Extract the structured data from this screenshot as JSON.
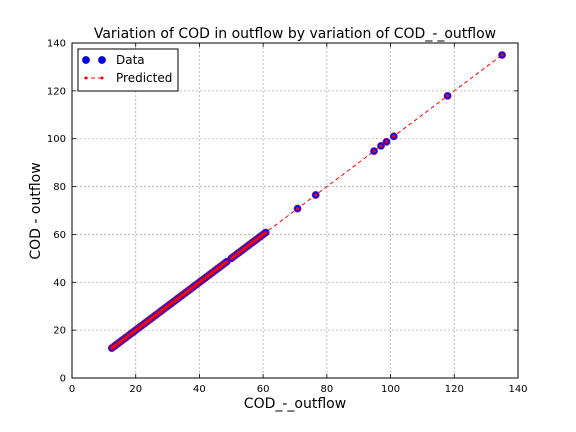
{
  "chart_data": {
    "type": "scatter",
    "title": "Variation of COD in outflow by variation of COD_-_outflow",
    "xlabel": "COD_-_outflow",
    "ylabel": "COD - outflow",
    "xlim": [
      0,
      140
    ],
    "ylim": [
      0,
      140
    ],
    "xticks": [
      "0",
      "20",
      "40",
      "60",
      "80",
      "100",
      "120",
      "140"
    ],
    "yticks": [
      "0",
      "20",
      "40",
      "60",
      "80",
      "100",
      "120",
      "140"
    ],
    "grid": true,
    "legend_position": "top-left",
    "series": [
      {
        "name": "Data",
        "kind": "scatter",
        "color": "#0000ff",
        "edge_color": "#7a1a7a",
        "x": [
          12.5,
          13.0,
          13.5,
          14.0,
          14.6,
          15.2,
          15.8,
          16.3,
          16.9,
          17.5,
          18.0,
          18.6,
          19.2,
          19.7,
          20.3,
          20.9,
          21.4,
          22.0,
          22.6,
          23.1,
          23.7,
          24.3,
          24.8,
          25.4,
          26.0,
          26.5,
          27.1,
          27.7,
          28.2,
          28.8,
          29.4,
          29.9,
          30.5,
          31.1,
          31.6,
          32.2,
          32.8,
          33.3,
          33.9,
          34.5,
          35.0,
          35.6,
          36.2,
          36.7,
          37.3,
          37.9,
          38.4,
          39.0,
          39.6,
          40.1,
          40.7,
          41.3,
          41.8,
          42.4,
          43.0,
          43.5,
          44.1,
          44.7,
          45.2,
          45.8,
          46.4,
          46.9,
          47.5,
          48.1,
          48.6,
          50.0,
          50.6,
          51.2,
          51.8,
          52.4,
          53.0,
          53.6,
          54.2,
          54.8,
          55.4,
          56.0,
          56.6,
          57.2,
          57.8,
          58.4,
          59.0,
          59.6,
          60.2,
          60.8,
          70.8,
          76.5,
          94.8,
          97.0,
          98.7,
          101.0,
          117.9,
          135.0
        ],
        "y": [
          12.5,
          13.0,
          13.5,
          14.0,
          14.6,
          15.2,
          15.8,
          16.3,
          16.9,
          17.5,
          18.0,
          18.6,
          19.2,
          19.7,
          20.3,
          20.9,
          21.4,
          22.0,
          22.6,
          23.1,
          23.7,
          24.3,
          24.8,
          25.4,
          26.0,
          26.5,
          27.1,
          27.7,
          28.2,
          28.8,
          29.4,
          29.9,
          30.5,
          31.1,
          31.6,
          32.2,
          32.8,
          33.3,
          33.9,
          34.5,
          35.0,
          35.6,
          36.2,
          36.7,
          37.3,
          37.9,
          38.4,
          39.0,
          39.6,
          40.1,
          40.7,
          41.3,
          41.8,
          42.4,
          43.0,
          43.5,
          44.1,
          44.7,
          45.2,
          45.8,
          46.4,
          46.9,
          47.5,
          48.1,
          48.6,
          50.0,
          50.6,
          51.2,
          51.8,
          52.4,
          53.0,
          53.6,
          54.2,
          54.8,
          55.4,
          56.0,
          56.6,
          57.2,
          57.8,
          58.4,
          59.0,
          59.6,
          60.2,
          60.8,
          70.8,
          76.5,
          94.8,
          97.0,
          98.7,
          101.0,
          117.9,
          135.0
        ]
      },
      {
        "name": "Predicted",
        "kind": "dashed-line",
        "color": "#ff0000",
        "x": [
          12.5,
          13.0,
          13.5,
          14.0,
          14.6,
          15.2,
          15.8,
          16.3,
          16.9,
          17.5,
          18.0,
          18.6,
          19.2,
          19.7,
          20.3,
          20.9,
          21.4,
          22.0,
          22.6,
          23.1,
          23.7,
          24.3,
          24.8,
          25.4,
          26.0,
          26.5,
          27.1,
          27.7,
          28.2,
          28.8,
          29.4,
          29.9,
          30.5,
          31.1,
          31.6,
          32.2,
          32.8,
          33.3,
          33.9,
          34.5,
          35.0,
          35.6,
          36.2,
          36.7,
          37.3,
          37.9,
          38.4,
          39.0,
          39.6,
          40.1,
          40.7,
          41.3,
          41.8,
          42.4,
          43.0,
          43.5,
          44.1,
          44.7,
          45.2,
          45.8,
          46.4,
          46.9,
          47.5,
          48.1,
          48.6,
          50.0,
          50.6,
          51.2,
          51.8,
          52.4,
          53.0,
          53.6,
          54.2,
          54.8,
          55.4,
          56.0,
          56.6,
          57.2,
          57.8,
          58.4,
          59.0,
          59.6,
          60.2,
          60.8,
          70.8,
          76.5,
          94.8,
          97.0,
          98.7,
          101.0,
          117.9,
          135.0
        ],
        "y": [
          12.5,
          13.0,
          13.5,
          14.0,
          14.6,
          15.2,
          15.8,
          16.3,
          16.9,
          17.5,
          18.0,
          18.6,
          19.2,
          19.7,
          20.3,
          20.9,
          21.4,
          22.0,
          22.6,
          23.1,
          23.7,
          24.3,
          24.8,
          25.4,
          26.0,
          26.5,
          27.1,
          27.7,
          28.2,
          28.8,
          29.4,
          29.9,
          30.5,
          31.1,
          31.6,
          32.2,
          32.8,
          33.3,
          33.9,
          34.5,
          35.0,
          35.6,
          36.2,
          36.7,
          37.3,
          37.9,
          38.4,
          39.0,
          39.6,
          40.1,
          40.7,
          41.3,
          41.8,
          42.4,
          43.0,
          43.5,
          44.1,
          44.7,
          45.2,
          45.8,
          46.4,
          46.9,
          47.5,
          48.1,
          48.6,
          50.0,
          50.6,
          51.2,
          51.8,
          52.4,
          53.0,
          53.6,
          54.2,
          54.8,
          55.4,
          56.0,
          56.6,
          57.2,
          57.8,
          58.4,
          59.0,
          59.6,
          60.2,
          60.8,
          70.8,
          76.5,
          94.8,
          97.0,
          98.7,
          101.0,
          117.9,
          135.0
        ]
      }
    ]
  }
}
